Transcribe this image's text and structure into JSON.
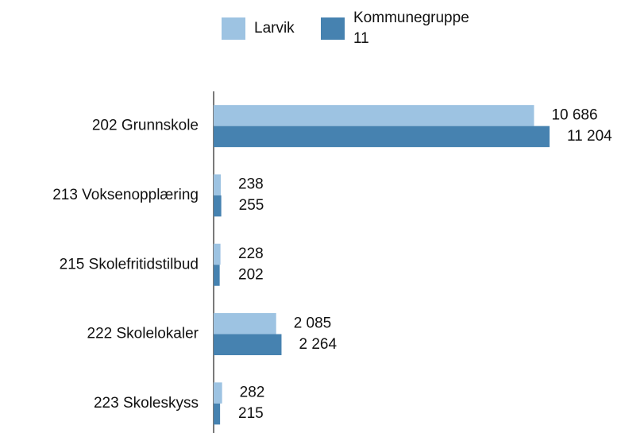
{
  "chart_data": {
    "type": "barh",
    "categories": [
      "202 Grunnskole",
      "213 Voksenopplæring",
      "215 Skolefritidstilbud",
      "222 Skolelokaler",
      "223 Skoleskyss"
    ],
    "series": [
      {
        "name": "Larvik",
        "color": "#9dc3e2",
        "values": [
          10686,
          238,
          228,
          2085,
          282
        ],
        "value_labels": [
          "10 686",
          "238",
          "228",
          "2 085",
          "282"
        ]
      },
      {
        "name": "Kommunegruppe 11",
        "color": "#4682b0",
        "values": [
          11204,
          255,
          202,
          2264,
          215
        ],
        "value_labels": [
          "11 204",
          "255",
          "202",
          "2 264",
          "215"
        ]
      }
    ],
    "legend": "top"
  }
}
